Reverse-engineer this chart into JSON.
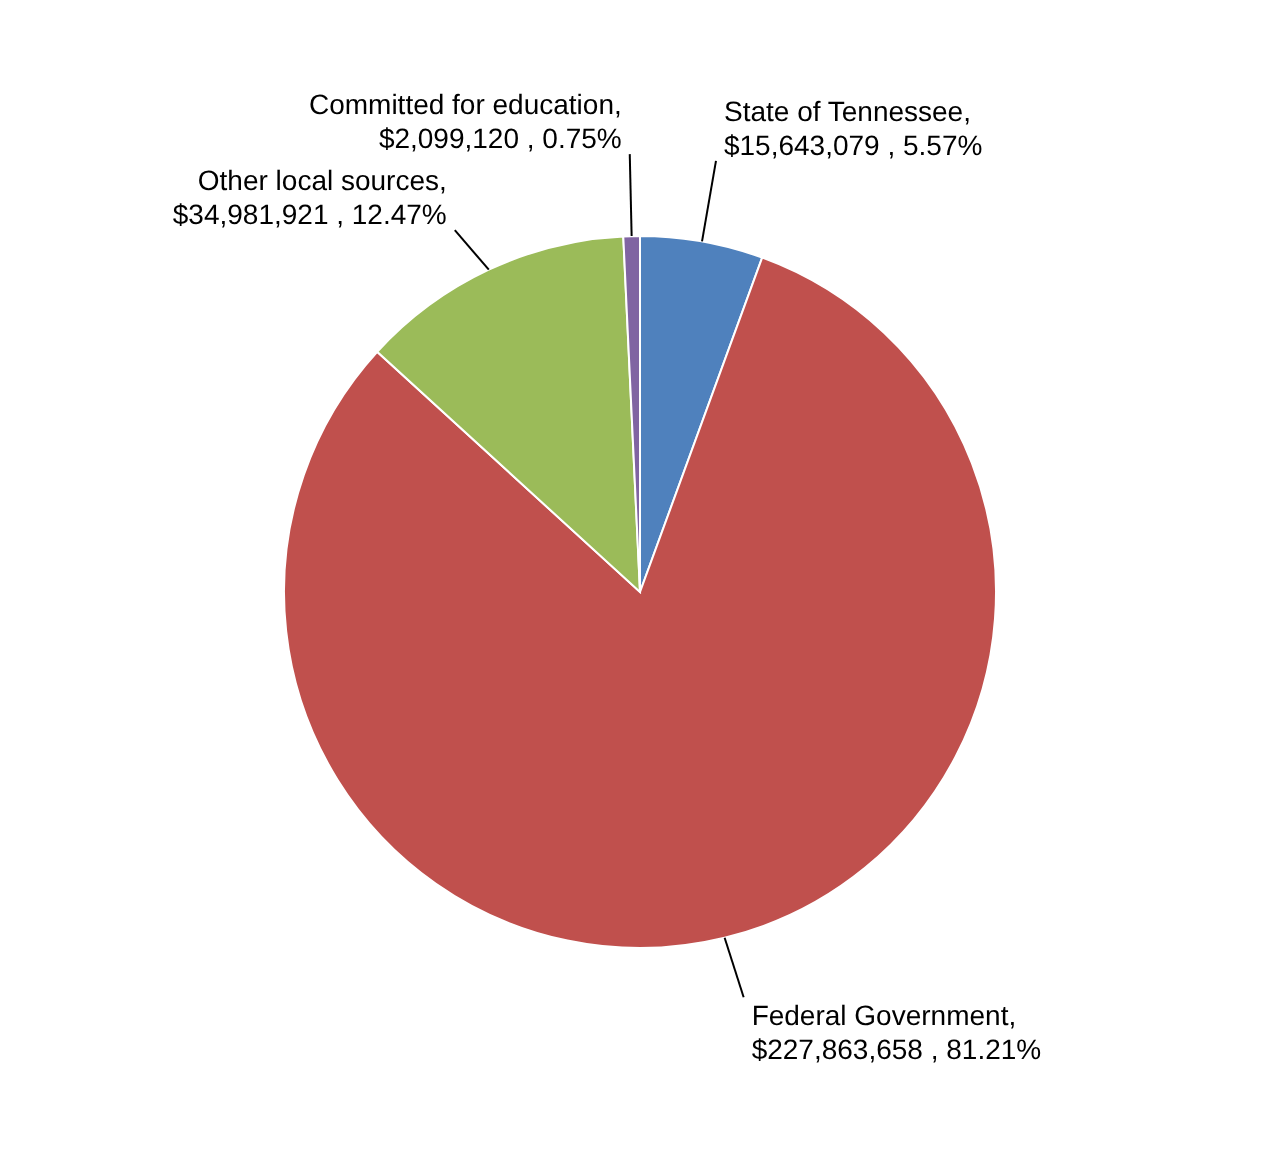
{
  "chart_data": {
    "type": "pie",
    "categories": [
      "State of Tennessee",
      "Federal Government",
      "Other local sources",
      "Committed for education"
    ],
    "values": [
      15643079,
      227863658,
      34981921,
      2099120
    ],
    "value_labels": [
      ",\n$15,643,079 , 5.57%",
      ",\n$227,863,658 , 81.21%",
      ",\n$34,981,921 , 12.47%",
      ",\n$2,099,120 , 0.75%"
    ],
    "colors": [
      "#4f81bd",
      "#c0504d",
      "#9bbb59",
      "#8064a2"
    ]
  }
}
